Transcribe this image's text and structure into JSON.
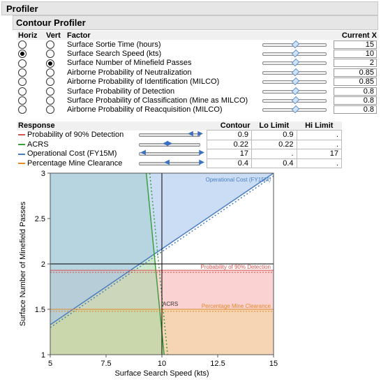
{
  "profiler_title": "Profiler",
  "contour_title": "Contour Profiler",
  "factor_headers": {
    "horiz": "Horiz",
    "vert": "Vert",
    "factor": "Factor",
    "current": "Current X"
  },
  "factors": [
    {
      "name": "Surface Sortie Time (hours)",
      "value": "15",
      "horiz": false,
      "vert": false
    },
    {
      "name": "Surface Search Speed (kts)",
      "value": "10",
      "horiz": true,
      "vert": false
    },
    {
      "name": "Surface Number of Minefield Passes",
      "value": "2",
      "horiz": false,
      "vert": true
    },
    {
      "name": "Airborne Probability of Neutralization",
      "value": "0.85",
      "horiz": false,
      "vert": false
    },
    {
      "name": "Airborne Probability of Identification (MILCO)",
      "value": "0.85",
      "horiz": false,
      "vert": false
    },
    {
      "name": "Surface Probability of Detection",
      "value": "0.8",
      "horiz": false,
      "vert": false
    },
    {
      "name": "Surface Probability of Classification (Mine as MILCO)",
      "value": "0.8",
      "horiz": false,
      "vert": false
    },
    {
      "name": "Airborne Probability of Reacquisition (MILCO)",
      "value": "0.8",
      "horiz": false,
      "vert": false
    }
  ],
  "response_headers": {
    "response": "Response",
    "contour": "Contour",
    "lo": "Lo Limit",
    "hi": "Hi Limit"
  },
  "responses": [
    {
      "name": "Probability of 90% Detection",
      "color": "#d9534f",
      "contour": "0.9",
      "lo": "0.9",
      "hi": "."
    },
    {
      "name": "ACRS",
      "color": "#3aa03a",
      "contour": "0.22",
      "lo": "0.22",
      "hi": "."
    },
    {
      "name": "Operational Cost (FY15M)",
      "color": "#4a7ec0",
      "contour": "17",
      "lo": ".",
      "hi": "17"
    },
    {
      "name": "Percentage Mine Clearance",
      "color": "#e08a2a",
      "contour": "0.4",
      "lo": "0.4",
      "hi": "."
    }
  ],
  "chart_data": {
    "type": "contour",
    "xlabel": "Surface Search Speed (kts)",
    "ylabel": "Surface Number of Minefield Passes",
    "xlim": [
      5,
      15
    ],
    "ylim": [
      1,
      3
    ],
    "xticks": [
      "5",
      "7.5",
      "10",
      "12.5",
      "15"
    ],
    "yticks": [
      "1",
      "1.5",
      "2",
      "2.5",
      "3"
    ],
    "crosshair": {
      "x": 10,
      "y": 2
    },
    "contour_labels": {
      "cost": "Operational Cost (FY15M)",
      "detection": "Probability of 90% Detection",
      "acrs": "ACRS",
      "clearance": "Percentage Mine Clearance"
    },
    "contours": {
      "cost_line": [
        [
          5,
          1.33
        ],
        [
          15,
          3.0
        ]
      ],
      "acrs_line": [
        [
          9.3,
          3.0
        ],
        [
          10.1,
          1.0
        ]
      ],
      "detection_y": 1.93,
      "clearance_y": 1.5
    },
    "colors": {
      "cost": "#4a7ec0",
      "acrs": "#3aa03a",
      "detection": "#d9534f",
      "clearance": "#e08a2a"
    }
  }
}
